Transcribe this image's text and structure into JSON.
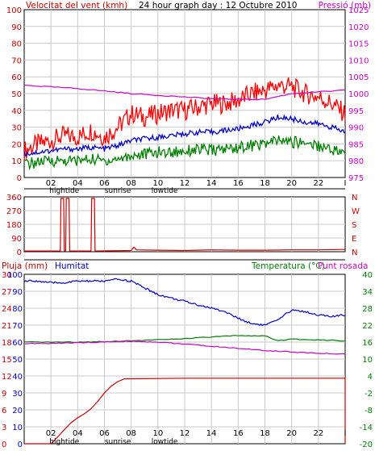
{
  "header": {
    "wind_label": "Velocitat del vent (kmh)",
    "title": "24 hour graph day : 12 Octubre 2010",
    "pressure_label": "Pressió (mb)"
  },
  "colors": {
    "wind_gust": "#ff0000",
    "wind_avg": "#0000cc",
    "wind_low": "#008000",
    "pressure": "#cc00cc",
    "direction": "#cc0000",
    "rain": "#cc0000",
    "humidity": "#0000cc",
    "temperature": "#008000",
    "dewpoint": "#cc00cc",
    "grid": "#c8c8c8"
  },
  "x_ticks": [
    "02",
    "04",
    "06",
    "08",
    "10",
    "12",
    "14",
    "16",
    "18",
    "20",
    "22",
    "I"
  ],
  "markers": {
    "hightide": "hightide",
    "sunrise": "sunrise",
    "lowtide": "lowtide"
  },
  "chart_data": [
    {
      "type": "line",
      "name_label": "wind",
      "x_unit": "hour",
      "x_range": [
        0,
        24
      ],
      "y_left_ticks": [
        "0",
        "10",
        "20",
        "30",
        "40",
        "50",
        "60",
        "70",
        "80",
        "90",
        "100"
      ],
      "y_right_ticks": [
        "975",
        "980",
        "985",
        "990",
        "995",
        "1000",
        "1005",
        "1010",
        "1015",
        "1020",
        "1025"
      ],
      "ylim_left": [
        0,
        100
      ],
      "ylim_right": [
        975,
        1025
      ],
      "series": [
        {
          "key": "gust",
          "x": [
            0,
            1,
            2,
            3,
            4,
            5,
            6,
            7,
            8,
            9,
            10,
            11,
            12,
            13,
            14,
            15,
            16,
            17,
            18,
            19,
            20,
            21,
            22,
            23,
            24
          ],
          "values": [
            16,
            20,
            22,
            25,
            24,
            28,
            24,
            30,
            38,
            36,
            38,
            40,
            40,
            42,
            44,
            44,
            46,
            50,
            52,
            55,
            54,
            50,
            48,
            44,
            38
          ]
        },
        {
          "key": "average",
          "x": [
            0,
            1,
            2,
            3,
            4,
            5,
            6,
            7,
            8,
            9,
            10,
            11,
            12,
            13,
            14,
            15,
            16,
            17,
            18,
            19,
            20,
            21,
            22,
            23,
            24
          ],
          "values": [
            14,
            15,
            16,
            17,
            17,
            18,
            17,
            19,
            22,
            23,
            24,
            25,
            26,
            27,
            27,
            28,
            29,
            31,
            33,
            36,
            35,
            33,
            32,
            30,
            27
          ]
        },
        {
          "key": "low",
          "x": [
            0,
            1,
            2,
            3,
            4,
            5,
            6,
            7,
            8,
            9,
            10,
            11,
            12,
            13,
            14,
            15,
            16,
            17,
            18,
            19,
            20,
            21,
            22,
            23,
            24
          ],
          "values": [
            8,
            9,
            10,
            10,
            10,
            11,
            10,
            11,
            13,
            14,
            15,
            15,
            16,
            17,
            16,
            17,
            18,
            19,
            20,
            22,
            21,
            21,
            19,
            17,
            14
          ]
        },
        {
          "key": "pressure",
          "axis": "right",
          "x": [
            0,
            2,
            4,
            6,
            8,
            10,
            12,
            14,
            16,
            18,
            20,
            22,
            24
          ],
          "values": [
            1002.5,
            1002.0,
            1001.5,
            1000.8,
            1000.0,
            999.5,
            999.0,
            998.5,
            998.3,
            998.3,
            1000.0,
            1000.5,
            1001.0
          ]
        }
      ]
    },
    {
      "type": "line",
      "name_label": "wind-direction",
      "x_range": [
        0,
        24
      ],
      "y_ticks": [
        "0",
        "90",
        "180",
        "270",
        "360"
      ],
      "y_right_labels": [
        "N",
        "W",
        "S",
        "E",
        "N"
      ],
      "ylim": [
        0,
        360
      ],
      "series": [
        {
          "key": "direction",
          "x": [
            0,
            2.7,
            2.75,
            2.95,
            3.0,
            3.1,
            3.15,
            3.35,
            3.4,
            5.0,
            5.05,
            5.25,
            5.3,
            8.0,
            8.2,
            8.4,
            10,
            12,
            14,
            16,
            18,
            20,
            22,
            24
          ],
          "values": [
            5,
            5,
            350,
            350,
            5,
            5,
            350,
            350,
            5,
            5,
            350,
            350,
            5,
            8,
            30,
            12,
            10,
            8,
            12,
            10,
            10,
            12,
            12,
            15
          ]
        }
      ]
    },
    {
      "type": "line",
      "name_label": "rain-humidity-temperature",
      "x_range": [
        0,
        24
      ],
      "rain_label": "Pluja (mm)",
      "humidity_label": "Humitat",
      "temperature_label": "Temperatura (°C)",
      "dewpoint_label": "Punt rosada",
      "y_rain_ticks": [
        "0",
        "3",
        "6",
        "9",
        "12",
        "15",
        "18",
        "21",
        "24",
        "27",
        "30"
      ],
      "y_humidity_ticks": [
        "0",
        "10",
        "20",
        "30",
        "40",
        "50",
        "60",
        "70",
        "80",
        "90",
        "100"
      ],
      "y_temperature_ticks": [
        "-20",
        "-14",
        "-8",
        "-2",
        "4",
        "10",
        "16",
        "22",
        "28",
        "34",
        "40"
      ],
      "ylim_rain": [
        0,
        30
      ],
      "ylim_temperature": [
        -20,
        40
      ],
      "series": [
        {
          "key": "rain",
          "x": [
            0,
            2.0,
            2.5,
            3.0,
            3.5,
            4.0,
            4.5,
            5.0,
            5.5,
            6.0,
            6.5,
            7.0,
            7.5,
            8.0,
            12,
            16,
            20,
            24
          ],
          "values": [
            0,
            0,
            1.2,
            2.5,
            3.7,
            4.6,
            5.3,
            6.2,
            7.5,
            9.0,
            10.2,
            11.0,
            11.5,
            11.5,
            11.6,
            11.6,
            11.6,
            11.6
          ]
        },
        {
          "key": "humidity",
          "x": [
            0,
            1,
            2,
            3,
            4,
            5,
            6,
            7,
            8,
            9,
            10,
            11,
            12,
            13,
            14,
            15,
            16,
            17,
            18,
            19,
            20,
            21,
            22,
            23,
            24
          ],
          "values": [
            96,
            96,
            95,
            95,
            96,
            96,
            96,
            97,
            96,
            92,
            88,
            86,
            84,
            82,
            80,
            78,
            74,
            71,
            70,
            73,
            79,
            78,
            76,
            75,
            76
          ]
        },
        {
          "key": "temperature",
          "x": [
            0,
            2,
            4,
            6,
            8,
            10,
            12,
            14,
            16,
            18,
            19,
            20,
            22,
            24
          ],
          "values": [
            16,
            16,
            16,
            16.2,
            16.5,
            16.8,
            17.2,
            17.8,
            18.3,
            18.2,
            16.5,
            17.0,
            16.8,
            16.5
          ]
        },
        {
          "key": "dewpoint",
          "x": [
            0,
            2,
            4,
            6,
            8,
            10,
            12,
            14,
            16,
            18,
            20,
            22,
            24
          ],
          "values": [
            15.5,
            15.5,
            15.8,
            16.0,
            16.3,
            16.0,
            15.3,
            14.5,
            13.8,
            13.0,
            12.5,
            12.0,
            11.8
          ]
        }
      ]
    }
  ]
}
